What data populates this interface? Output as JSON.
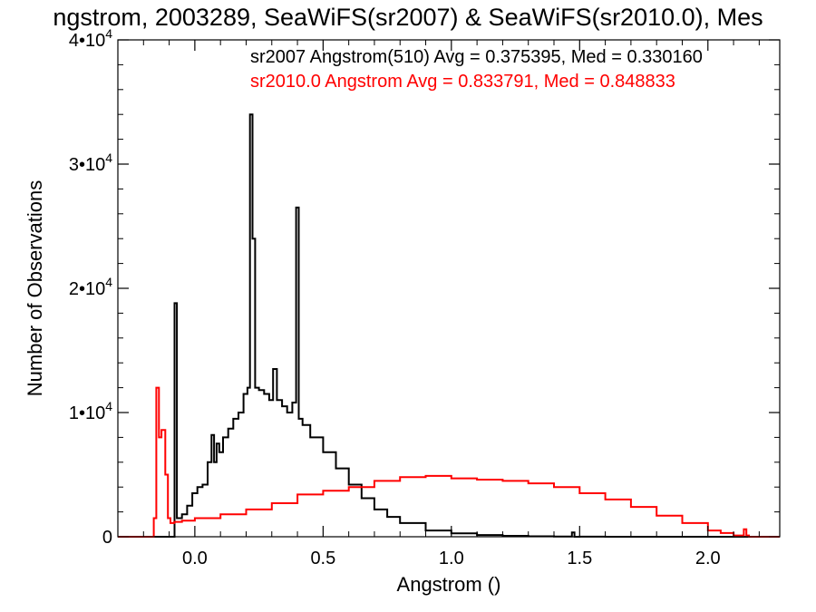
{
  "chart_data": {
    "type": "line",
    "title": "ngstrom, 2003289, SeaWiFS(sr2007) & SeaWiFS(sr2010.0), Mes",
    "xlabel": "Angstrom ()",
    "ylabel": "Number of Observations",
    "xlim": [
      -0.3,
      2.28
    ],
    "ylim": [
      0,
      40000
    ],
    "x_ticks": [
      {
        "value": 0.0,
        "label": "0.0"
      },
      {
        "value": 0.5,
        "label": "0.5"
      },
      {
        "value": 1.0,
        "label": "1.0"
      },
      {
        "value": 1.5,
        "label": "1.5"
      },
      {
        "value": 2.0,
        "label": "2.0"
      }
    ],
    "y_ticks": [
      {
        "value": 0,
        "label": "0",
        "exp": ""
      },
      {
        "value": 10000,
        "label": "1•10",
        "exp": "4"
      },
      {
        "value": 20000,
        "label": "2•10",
        "exp": "4"
      },
      {
        "value": 30000,
        "label": "3•10",
        "exp": "4"
      },
      {
        "value": 40000,
        "label": "4•10",
        "exp": "4"
      }
    ],
    "grid": false,
    "annotations": [
      {
        "text": "sr2007 Angstrom(510) Avg = 0.375395, Med = 0.330160",
        "color": "#000000"
      },
      {
        "text": "sr2010.0 Angstrom Avg = 0.833791, Med = 0.848833",
        "color": "#ff0000"
      }
    ],
    "series": [
      {
        "color": "#000000",
        "step": true,
        "x": [
          -0.3,
          -0.08,
          -0.079,
          -0.07,
          -0.069,
          -0.05,
          -0.03,
          -0.01,
          0.01,
          0.03,
          0.05,
          0.065,
          0.075,
          0.085,
          0.095,
          0.11,
          0.13,
          0.15,
          0.17,
          0.19,
          0.205,
          0.215,
          0.225,
          0.235,
          0.25,
          0.27,
          0.29,
          0.305,
          0.32,
          0.34,
          0.36,
          0.38,
          0.395,
          0.405,
          0.42,
          0.45,
          0.5,
          0.55,
          0.6,
          0.65,
          0.7,
          0.75,
          0.8,
          0.9,
          1.0,
          1.1,
          1.2,
          1.3,
          1.4,
          1.47,
          1.48,
          1.5,
          1.6,
          2.28
        ],
        "y": [
          0,
          0,
          18800,
          1500,
          1500,
          1800,
          2500,
          3500,
          4000,
          4200,
          6000,
          8200,
          6000,
          7500,
          6800,
          8000,
          8700,
          9500,
          10000,
          11500,
          12000,
          34000,
          24000,
          12000,
          11800,
          11500,
          11000,
          13500,
          11000,
          10500,
          10000,
          10800,
          26500,
          9500,
          9000,
          8000,
          6800,
          5500,
          4200,
          3100,
          2200,
          1600,
          1100,
          500,
          280,
          140,
          70,
          40,
          20,
          350,
          0,
          10,
          0,
          0
        ]
      },
      {
        "color": "#ff0000",
        "step": true,
        "x": [
          -0.3,
          -0.16,
          -0.15,
          -0.14,
          -0.13,
          -0.115,
          -0.105,
          -0.095,
          -0.08,
          -0.05,
          0.0,
          0.1,
          0.2,
          0.3,
          0.4,
          0.5,
          0.6,
          0.7,
          0.8,
          0.9,
          1.0,
          1.1,
          1.2,
          1.3,
          1.4,
          1.5,
          1.6,
          1.7,
          1.8,
          1.9,
          2.0,
          2.05,
          2.1,
          2.14,
          2.15,
          2.16,
          2.28
        ],
        "y": [
          0,
          1500,
          12000,
          8000,
          8600,
          5000,
          1500,
          1100,
          1200,
          1300,
          1500,
          1800,
          2200,
          2700,
          3400,
          3700,
          4000,
          4500,
          4800,
          4900,
          4700,
          4600,
          4500,
          4300,
          4000,
          3500,
          3000,
          2400,
          1700,
          1100,
          500,
          300,
          100,
          600,
          100,
          0,
          0
        ]
      }
    ]
  }
}
